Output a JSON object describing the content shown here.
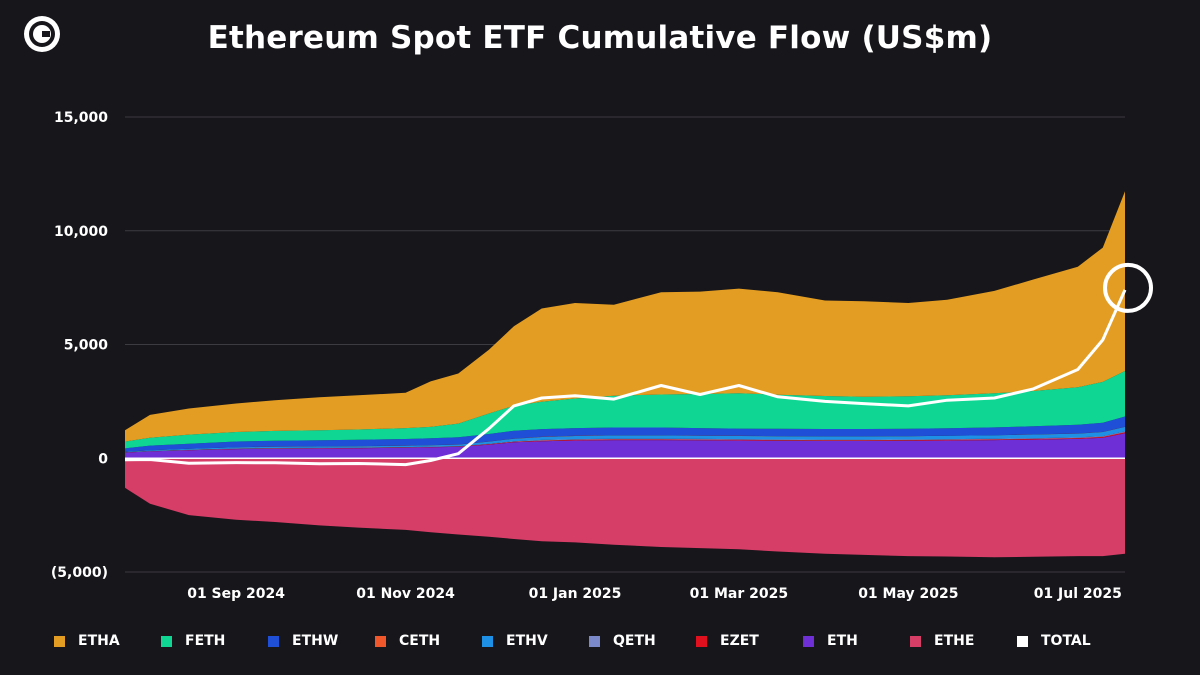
{
  "title": "Ethereum Spot ETF Cumulative Flow (US$m)",
  "icons": {
    "logo": "coinshares-logo"
  },
  "chart_data": {
    "type": "area",
    "title": "Ethereum Spot ETF Cumulative Flow (US$m)",
    "xlabel": "",
    "ylabel": "",
    "ylim": [
      -5000,
      15000
    ],
    "xlim": [
      "2024-07-23",
      "2025-07-18"
    ],
    "y_ticks": [
      15000,
      10000,
      5000,
      0,
      -5000
    ],
    "y_tick_labels": [
      "15,000",
      "10,000",
      "5,000",
      "0",
      "(5,000)"
    ],
    "x_ticks": [
      "2024-09-01",
      "2024-11-01",
      "2025-01-01",
      "2025-03-01",
      "2025-05-01",
      "2025-07-01"
    ],
    "x_tick_labels": [
      "01 Sep 2024",
      "01 Nov 2024",
      "01 Jan 2025",
      "01 Mar 2025",
      "01 May 2025",
      "01 Jul 2025"
    ],
    "grid": true,
    "legend_position": "bottom",
    "stacked": true,
    "dates": [
      "2024-07-23",
      "2024-08-01",
      "2024-08-15",
      "2024-09-01",
      "2024-09-15",
      "2024-10-01",
      "2024-10-15",
      "2024-11-01",
      "2024-11-10",
      "2024-11-20",
      "2024-12-01",
      "2024-12-10",
      "2024-12-20",
      "2025-01-01",
      "2025-01-15",
      "2025-02-01",
      "2025-02-15",
      "2025-03-01",
      "2025-03-15",
      "2025-04-01",
      "2025-04-15",
      "2025-05-01",
      "2025-05-15",
      "2025-06-01",
      "2025-06-15",
      "2025-07-01",
      "2025-07-10",
      "2025-07-18"
    ],
    "series": [
      {
        "name": "ETH",
        "color": "#6e2fd6",
        "values": [
          250,
          300,
          350,
          400,
          420,
          430,
          440,
          460,
          480,
          500,
          600,
          700,
          750,
          780,
          800,
          800,
          790,
          780,
          770,
          760,
          760,
          770,
          780,
          800,
          820,
          850,
          900,
          1100
        ]
      },
      {
        "name": "EZET",
        "color": "#e0101e",
        "values": [
          5,
          10,
          12,
          15,
          15,
          15,
          15,
          15,
          15,
          15,
          20,
          25,
          28,
          30,
          30,
          30,
          30,
          30,
          30,
          30,
          30,
          30,
          30,
          30,
          32,
          35,
          38,
          40
        ]
      },
      {
        "name": "QETH",
        "color": "#7b88c9",
        "values": [
          5,
          10,
          12,
          15,
          15,
          15,
          15,
          15,
          15,
          15,
          20,
          25,
          28,
          30,
          30,
          30,
          30,
          30,
          30,
          30,
          30,
          30,
          30,
          30,
          30,
          30,
          35,
          40
        ]
      },
      {
        "name": "ETHV",
        "color": "#1e90e6",
        "values": [
          20,
          30,
          40,
          50,
          55,
          55,
          60,
          60,
          65,
          70,
          90,
          110,
          130,
          140,
          145,
          145,
          140,
          140,
          140,
          140,
          140,
          140,
          145,
          150,
          160,
          170,
          180,
          200
        ]
      },
      {
        "name": "CETH",
        "color": "#f0572a",
        "values": [
          2,
          5,
          5,
          5,
          5,
          5,
          5,
          5,
          5,
          5,
          5,
          5,
          5,
          5,
          5,
          5,
          5,
          5,
          5,
          5,
          5,
          5,
          5,
          5,
          5,
          5,
          5,
          5
        ]
      },
      {
        "name": "ETHW",
        "color": "#1f4fd6",
        "values": [
          150,
          200,
          220,
          250,
          260,
          270,
          280,
          290,
          300,
          320,
          330,
          340,
          340,
          340,
          340,
          340,
          330,
          320,
          320,
          320,
          320,
          320,
          330,
          340,
          360,
          380,
          400,
          450
        ]
      },
      {
        "name": "FETH",
        "color": "#10d694",
        "values": [
          300,
          350,
          400,
          420,
          430,
          440,
          450,
          480,
          500,
          600,
          900,
          1100,
          1200,
          1300,
          1400,
          1450,
          1500,
          1550,
          1500,
          1450,
          1420,
          1430,
          1450,
          1500,
          1550,
          1650,
          1800,
          2000
        ]
      },
      {
        "name": "ETHA",
        "color": "#e39d22",
        "values": [
          500,
          1000,
          1150,
          1250,
          1350,
          1450,
          1500,
          1550,
          2000,
          2200,
          2800,
          3500,
          4100,
          4200,
          4000,
          4500,
          4500,
          4600,
          4500,
          4200,
          4200,
          4100,
          4200,
          4500,
          4900,
          5300,
          5900,
          7900
        ]
      },
      {
        "name": "ETHE",
        "color": "#d63d67",
        "values": [
          -1300,
          -2000,
          -2500,
          -2700,
          -2800,
          -2950,
          -3050,
          -3150,
          -3250,
          -3350,
          -3450,
          -3550,
          -3650,
          -3700,
          -3800,
          -3900,
          -3950,
          -4000,
          -4100,
          -4200,
          -4250,
          -4300,
          -4320,
          -4350,
          -4330,
          -4300,
          -4300,
          -4200
        ]
      }
    ],
    "total": {
      "name": "TOTAL",
      "color": "#ffffff",
      "values": [
        -66,
        -55,
        -220,
        -190,
        -200,
        -240,
        -230,
        -280,
        -100,
        200,
        1300,
        2300,
        2650,
        2750,
        2600,
        3200,
        2800,
        3200,
        2700,
        2500,
        2400,
        2300,
        2550,
        2650,
        3050,
        3900,
        5200,
        7400
      ]
    }
  },
  "legend": [
    "ETHA",
    "FETH",
    "ETHW",
    "CETH",
    "ETHV",
    "QETH",
    "EZET",
    "ETH",
    "ETHE",
    "TOTAL"
  ],
  "colors": {
    "ETHA": "#e39d22",
    "FETH": "#10d694",
    "ETHW": "#1f4fd6",
    "CETH": "#f0572a",
    "ETHV": "#1e90e6",
    "QETH": "#7b88c9",
    "EZET": "#e0101e",
    "ETH": "#6e2fd6",
    "ETHE": "#d63d67",
    "TOTAL": "#ffffff",
    "background": "#17161b",
    "grid": "#3c3b42"
  }
}
